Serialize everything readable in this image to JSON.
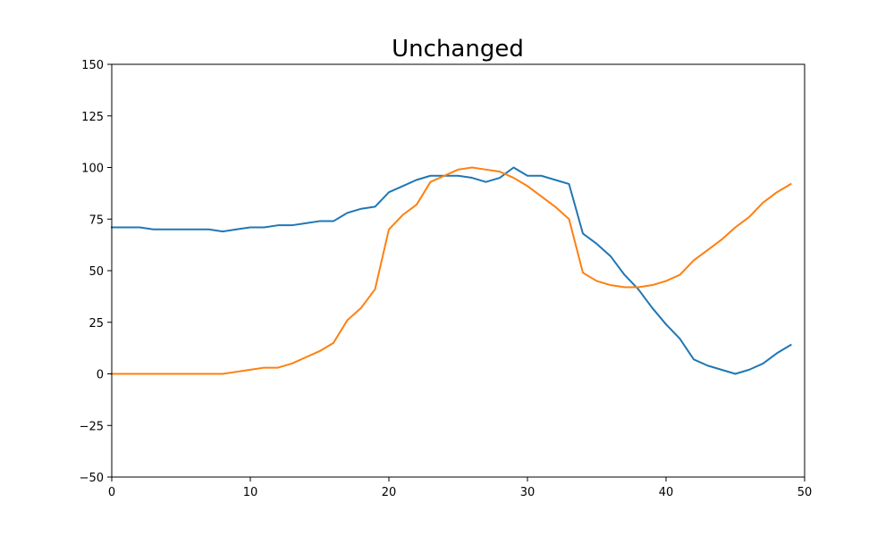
{
  "chart_data": {
    "type": "line",
    "title": "Unchanged",
    "xlabel": "",
    "ylabel": "",
    "xlim": [
      0,
      50
    ],
    "ylim": [
      -50,
      150
    ],
    "x_ticks": [
      0,
      10,
      20,
      30,
      40,
      50
    ],
    "y_ticks": [
      -50,
      -25,
      0,
      25,
      50,
      75,
      100,
      125,
      150
    ],
    "grid": false,
    "legend": "none",
    "x": [
      0,
      1,
      2,
      3,
      4,
      5,
      6,
      7,
      8,
      9,
      10,
      11,
      12,
      13,
      14,
      15,
      16,
      17,
      18,
      19,
      20,
      21,
      22,
      23,
      24,
      25,
      26,
      27,
      28,
      29,
      30,
      31,
      32,
      33,
      34,
      35,
      36,
      37,
      38,
      39,
      40,
      41,
      42,
      43,
      44,
      45,
      46,
      47,
      48,
      49
    ],
    "series": [
      {
        "color": "#1f77b4",
        "values": [
          71,
          71,
          71,
          70,
          70,
          70,
          70,
          70,
          69,
          70,
          71,
          71,
          72,
          72,
          73,
          74,
          74,
          78,
          80,
          81,
          88,
          91,
          94,
          96,
          96,
          96,
          95,
          93,
          95,
          100,
          96,
          96,
          94,
          92,
          68,
          63,
          57,
          48,
          41,
          32,
          24,
          17,
          7,
          4,
          2,
          0,
          2,
          5,
          10,
          14
        ]
      },
      {
        "color": "#ff7f0e",
        "values": [
          0,
          0,
          0,
          0,
          0,
          0,
          0,
          0,
          0,
          1,
          2,
          3,
          3,
          5,
          8,
          11,
          15,
          26,
          32,
          41,
          70,
          77,
          82,
          93,
          96,
          99,
          100,
          99,
          98,
          95,
          91,
          86,
          81,
          75,
          49,
          45,
          43,
          42,
          42,
          43,
          45,
          48,
          55,
          60,
          65,
          71,
          76,
          83,
          88,
          92
        ]
      }
    ]
  }
}
